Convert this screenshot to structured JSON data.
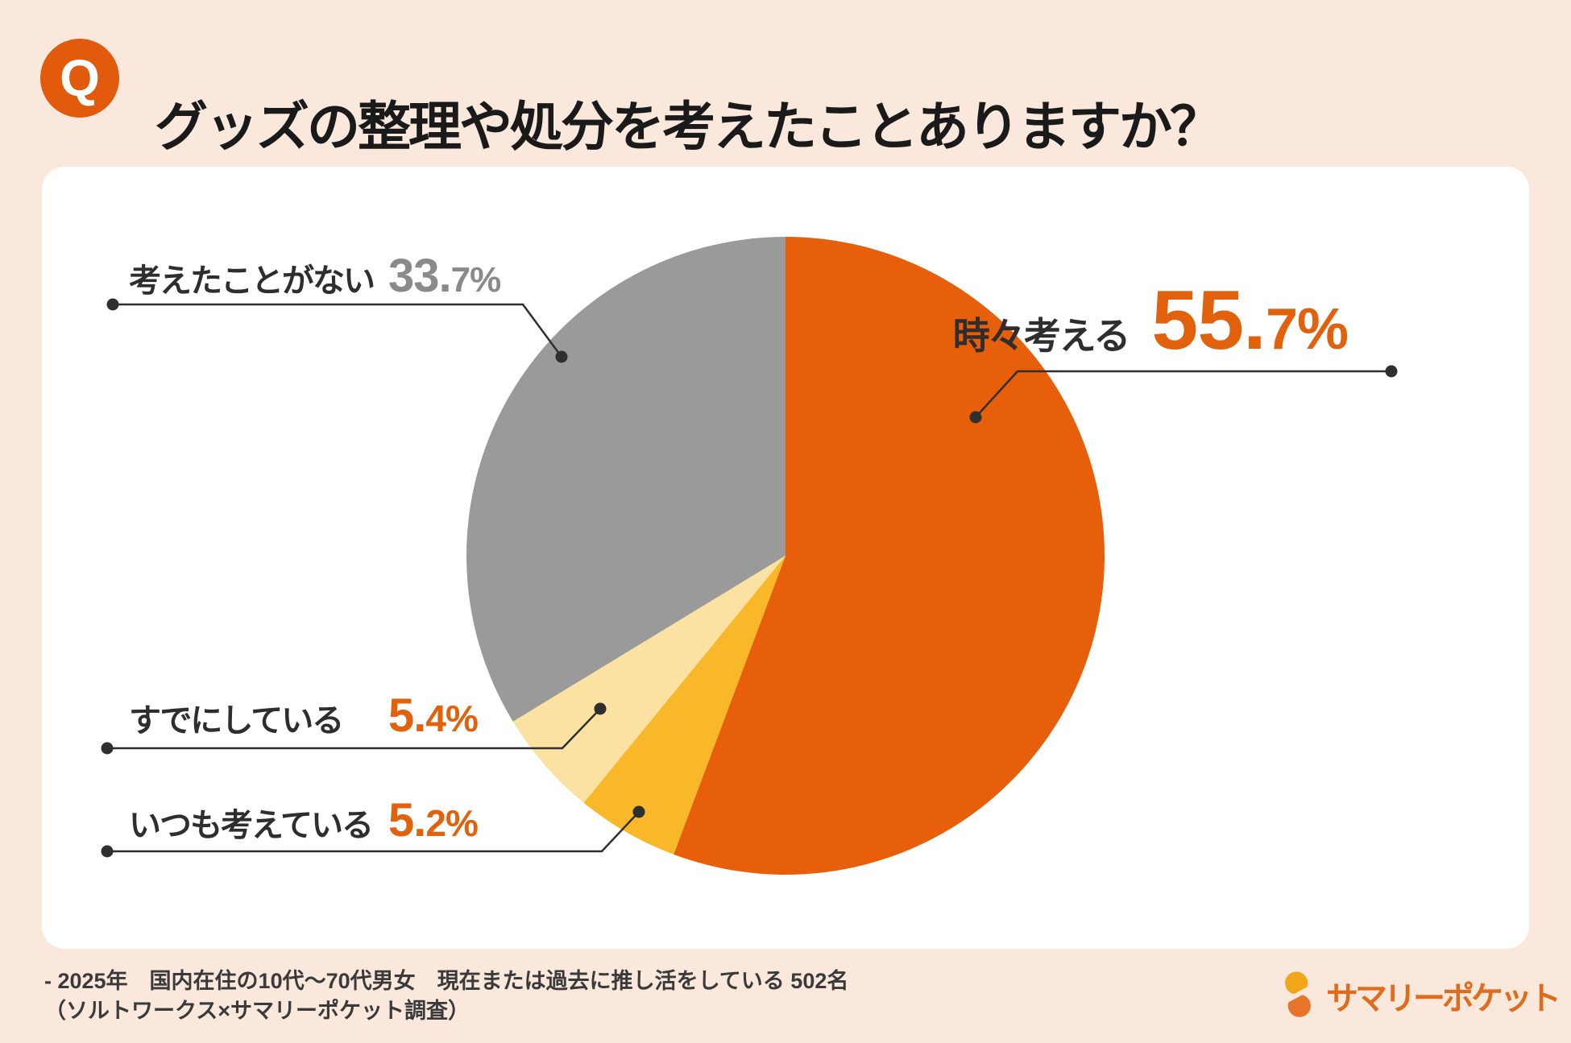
{
  "header": {
    "q_badge": "Q",
    "title": "グッズの整理や処分を考えたことありますか？"
  },
  "chart_data": {
    "type": "pie",
    "title": "グッズの整理や処分を考えたことありますか？",
    "start_angle_deg": 0,
    "direction": "clockwise",
    "legend_position": "callout-labels",
    "segments": [
      {
        "label": "時々考える",
        "value": 55.7,
        "value_main": "55.",
        "value_sub": "7%",
        "color": "#E85F0B",
        "number_color": "#E2610C"
      },
      {
        "label": "いつも考えている",
        "value": 5.2,
        "value_main": "5.",
        "value_sub": "2%",
        "color": "#F9B829",
        "number_color": "#E2610C"
      },
      {
        "label": "すでにしている",
        "value": 5.4,
        "value_main": "5.",
        "value_sub": "4%",
        "color": "#FBE2A2",
        "number_color": "#E2610C"
      },
      {
        "label": "考えたことがない",
        "value": 33.7,
        "value_main": "33.",
        "value_sub": "7%",
        "color": "#9A9A9B",
        "number_color": "#8a8a8a"
      }
    ]
  },
  "colors": {
    "background": "#FAE8DD",
    "card": "#FFFFFF",
    "accent_orange": "#E85F0B",
    "leader_line": "#2f2f2f"
  },
  "footer": {
    "note_line1": "- 2025年　国内在住の10代～70代男女　現在または過去に推し活をしている 502名",
    "note_line2": "（ソルトワークス×サマリーポケット調査）",
    "logo_text": "サマリーポケット"
  }
}
